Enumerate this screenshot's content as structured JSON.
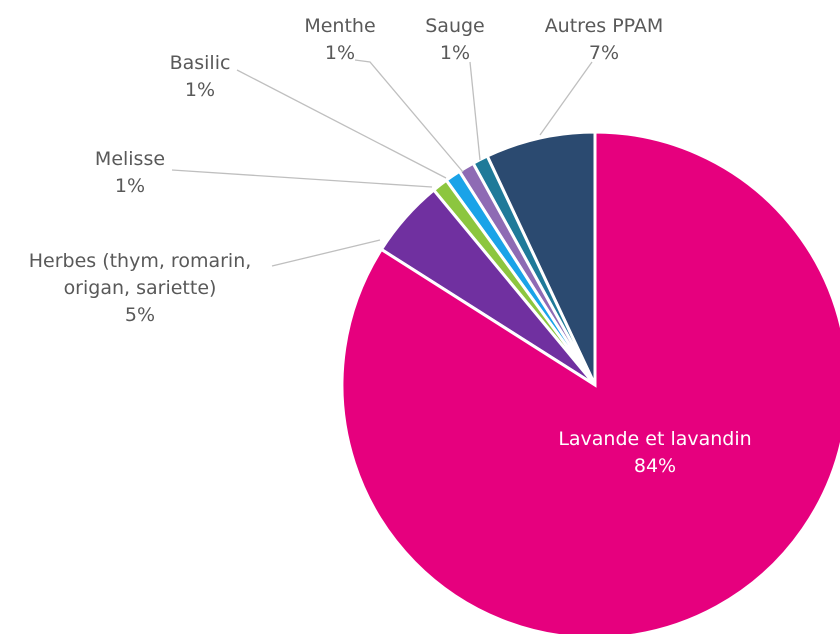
{
  "chart_data": {
    "type": "pie",
    "categories": [
      "Lavande et lavandin",
      "Herbes (thym, romarin, origan, sariette)",
      "Melisse",
      "Basilic",
      "Menthe",
      "Sauge",
      "Autres PPAM"
    ],
    "values": [
      84,
      5,
      1,
      1,
      1,
      1,
      7
    ],
    "value_labels": [
      "84%",
      "5%",
      "1%",
      "1%",
      "1%",
      "1%",
      "7%"
    ],
    "colors": [
      "#e6007e",
      "#7030a0",
      "#8cc63f",
      "#1aa3e8",
      "#8e6bb4",
      "#1f7a99",
      "#2b4a70"
    ]
  }
}
